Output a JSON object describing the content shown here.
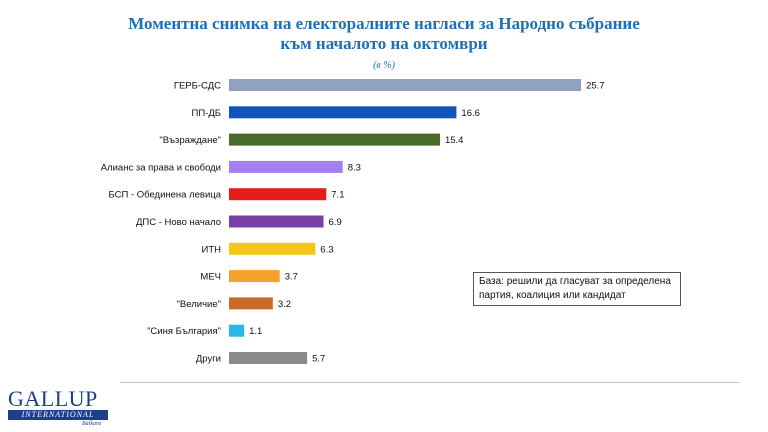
{
  "chart_data": {
    "type": "bar",
    "orientation": "horizontal",
    "title_line1": "Моментна снимка на електоралните нагласи за Народно събрание",
    "title_line2": "към началото на октомври",
    "unit": "(в %)",
    "categories": [
      "ГЕРБ-СДС",
      "ПП-ДБ",
      "\"Възраждане\"",
      "Алианс за права и свободи",
      "БСП - Обединена левица",
      "ДПС - Ново начало",
      "ИТН",
      "МЕЧ",
      "\"Величие\"",
      "\"Синя България\"",
      "Други"
    ],
    "values": [
      25.7,
      16.6,
      15.4,
      8.3,
      7.1,
      6.9,
      6.3,
      3.7,
      3.2,
      1.1,
      5.7
    ],
    "value_labels": [
      "25.7",
      "16.6",
      "15.4",
      "8.3",
      "7.1",
      "6.9",
      "6.3",
      "3.7",
      "3.2",
      "1.1",
      "5.7"
    ],
    "colors": [
      "#8fa3c1",
      "#1155b8",
      "#4a6b2a",
      "#a57ef0",
      "#e81b1b",
      "#7a3fa6",
      "#f5c518",
      "#f4a12b",
      "#c9692a",
      "#2bb5e8",
      "#8a8a8a"
    ],
    "xlim": [
      0,
      27
    ],
    "grid": false,
    "legend": "none"
  },
  "note": {
    "line1": "База: решили да гласуват за определена",
    "line2": "партия, коалиция или кандидат"
  },
  "logo": {
    "main": "GALLUP",
    "sub": "INTERNATIONAL",
    "tag": "Balkans"
  }
}
